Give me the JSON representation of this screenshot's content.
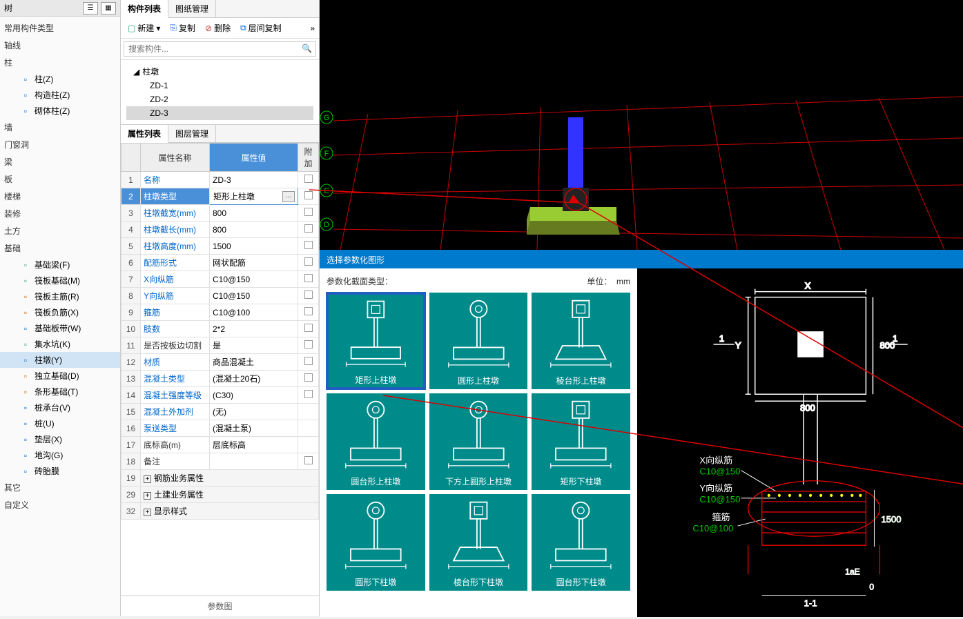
{
  "left_nav": {
    "header_title": "树",
    "categories": [
      {
        "label": "常用构件类型",
        "items": []
      },
      {
        "label": "轴线",
        "items": []
      },
      {
        "label": "柱",
        "items": [
          {
            "label": "柱(Z)",
            "icon": "pillar",
            "color": "#0066cc"
          },
          {
            "label": "构造柱(Z)",
            "icon": "constr",
            "color": "#0066cc"
          },
          {
            "label": "砌体柱(Z)",
            "icon": "brick",
            "color": "#0066cc"
          }
        ]
      },
      {
        "label": "墙",
        "items": []
      },
      {
        "label": "门窗洞",
        "items": []
      },
      {
        "label": "梁",
        "items": []
      },
      {
        "label": "板",
        "items": []
      },
      {
        "label": "楼梯",
        "items": []
      },
      {
        "label": "装修",
        "items": []
      },
      {
        "label": "土方",
        "items": []
      },
      {
        "label": "基础",
        "items": [
          {
            "label": "基础梁(F)",
            "icon": "beam",
            "color": "#4a7"
          },
          {
            "label": "筏板基础(M)",
            "icon": "raft",
            "color": "#4a7"
          },
          {
            "label": "筏板主筋(R)",
            "icon": "main",
            "color": "#c60"
          },
          {
            "label": "筏板负筋(X)",
            "icon": "neg",
            "color": "#c60"
          },
          {
            "label": "基础板带(W)",
            "icon": "strip",
            "color": "#06c"
          },
          {
            "label": "集水坑(K)",
            "icon": "pit",
            "color": "#4a7"
          },
          {
            "label": "柱墩(Y)",
            "icon": "pier",
            "color": "#06c",
            "sel": true
          },
          {
            "label": "独立基础(D)",
            "icon": "indep",
            "color": "#c60"
          },
          {
            "label": "条形基础(T)",
            "icon": "stripf",
            "color": "#c60"
          },
          {
            "label": "桩承台(V)",
            "icon": "cap",
            "color": "#06c"
          },
          {
            "label": "桩(U)",
            "icon": "pile",
            "color": "#06c"
          },
          {
            "label": "垫层(X)",
            "icon": "cushion",
            "color": "#06c"
          },
          {
            "label": "地沟(G)",
            "icon": "trench",
            "color": "#06c"
          },
          {
            "label": "砖胎膜",
            "icon": "mold",
            "color": "#06c"
          }
        ]
      },
      {
        "label": "其它",
        "items": []
      },
      {
        "label": "自定义",
        "items": []
      }
    ]
  },
  "comp_panel": {
    "tabs": [
      "构件列表",
      "图纸管理"
    ],
    "active_tab": 0,
    "toolbar": {
      "new": "新建",
      "copy": "复制",
      "delete": "删除",
      "layer_copy": "层间复制"
    },
    "search_placeholder": "搜索构件...",
    "tree": {
      "root": "柱墩",
      "children": [
        "ZD-1",
        "ZD-2",
        "ZD-3"
      ],
      "selected": "ZD-3"
    }
  },
  "prop_panel": {
    "tabs": [
      "属性列表",
      "图层管理"
    ],
    "active_tab": 0,
    "headers": {
      "name": "属性名称",
      "value": "属性值",
      "add": "附加"
    },
    "rows": [
      {
        "n": 1,
        "name": "名称",
        "value": "ZD-3",
        "link": true,
        "chk": true
      },
      {
        "n": 2,
        "name": "柱墩类型",
        "value": "矩形上柱墩",
        "link": true,
        "sel": true,
        "more": true,
        "chk": true
      },
      {
        "n": 3,
        "name": "柱墩截宽(mm)",
        "value": "800",
        "link": true,
        "chk": true
      },
      {
        "n": 4,
        "name": "柱墩截长(mm)",
        "value": "800",
        "link": true,
        "chk": true
      },
      {
        "n": 5,
        "name": "柱墩高度(mm)",
        "value": "1500",
        "link": true,
        "chk": true
      },
      {
        "n": 6,
        "name": "配筋形式",
        "value": "网状配筋",
        "link": true,
        "chk": true
      },
      {
        "n": 7,
        "name": "X向纵筋",
        "value": "C10@150",
        "link": true,
        "chk": true
      },
      {
        "n": 8,
        "name": "Y向纵筋",
        "value": "C10@150",
        "link": true,
        "chk": true
      },
      {
        "n": 9,
        "name": "箍筋",
        "value": "C10@100",
        "link": true,
        "chk": true
      },
      {
        "n": 10,
        "name": "肢数",
        "value": "2*2",
        "link": true,
        "chk": true
      },
      {
        "n": 11,
        "name": "是否按板边切割",
        "value": "是",
        "chk": true
      },
      {
        "n": 12,
        "name": "材质",
        "value": "商品混凝土",
        "link": true,
        "chk": true
      },
      {
        "n": 13,
        "name": "混凝土类型",
        "value": "(混凝土20石)",
        "link": true,
        "chk": true
      },
      {
        "n": 14,
        "name": "混凝土强度等级",
        "value": "(C30)",
        "link": true,
        "chk": true
      },
      {
        "n": 15,
        "name": "混凝土外加剂",
        "value": "(无)",
        "link": true
      },
      {
        "n": 16,
        "name": "泵送类型",
        "value": "(混凝土泵)",
        "link": true
      },
      {
        "n": 17,
        "name": "底标高(m)",
        "value": "层底标高"
      },
      {
        "n": 18,
        "name": "备注",
        "value": "",
        "chk": true
      }
    ],
    "expand_rows": [
      {
        "n": 19,
        "label": "钢筋业务属性"
      },
      {
        "n": 29,
        "label": "土建业务属性"
      },
      {
        "n": 32,
        "label": "显示样式"
      }
    ],
    "footer": "参数图"
  },
  "viewport": {
    "axis_labels": [
      "G",
      "F",
      "E",
      "D"
    ],
    "grid_color": "#cc0000",
    "pillar_color": "#3333ff",
    "pier_color": "#99cc33",
    "base_shade": "#667a1f"
  },
  "dialog": {
    "title": "选择参数化图形",
    "subtitle_left": "参数化截面类型：",
    "subtitle_right_label": "单位：",
    "subtitle_right_value": "mm",
    "thumbs": [
      {
        "label": "矩形上柱墩",
        "shape": "rect",
        "top": "rect",
        "sel": true
      },
      {
        "label": "圆形上柱墩",
        "shape": "rect",
        "top": "circ"
      },
      {
        "label": "棱台形上柱墩",
        "shape": "trap",
        "top": "rect"
      },
      {
        "label": "圆台形上柱墩",
        "shape": "rect",
        "top": "circ"
      },
      {
        "label": "下方上圆形上柱墩",
        "shape": "rect",
        "top": "circ"
      },
      {
        "label": "矩形下柱墩",
        "shape": "rect",
        "top": "rect"
      },
      {
        "label": "圆形下柱墩",
        "shape": "rect",
        "top": "circ"
      },
      {
        "label": "棱台形下柱墩",
        "shape": "trap",
        "top": "rect"
      },
      {
        "label": "圆台形下柱墩",
        "shape": "rect",
        "top": "circ"
      }
    ],
    "diagram": {
      "X_label": "X",
      "Y_label": "Y",
      "width": "800",
      "height": "800",
      "one_left": "1",
      "one_right": "1",
      "section_height": "1500",
      "x_rebar_label": "X向纵筋",
      "x_rebar_val": "C10@150",
      "y_rebar_label": "Y向纵筋",
      "y_rebar_val": "C10@150",
      "stirrup_label": "箍筋",
      "stirrup_val": "C10@100",
      "aE": "1aE",
      "zero": "0",
      "section": "1-1"
    }
  }
}
